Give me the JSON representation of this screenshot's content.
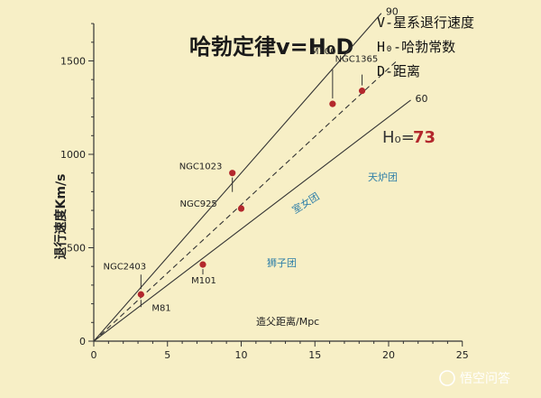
{
  "title": "哈勃定律v=H₀D",
  "legend": {
    "v_def": "V-星系退行速度",
    "h_def": "H₀-哈勃常数",
    "d_def": "D-距离"
  },
  "h0_label": "H₀=",
  "h0_value": "73",
  "watermark": "悟空问答",
  "colors": {
    "background": "#f7efc6",
    "points": "#b3282d",
    "cluster_text": "#2f7fa8"
  },
  "chart_data": {
    "type": "scatter",
    "xlabel": "造父距离/Mpc",
    "ylabel": "退行速度Km/s",
    "xlim": [
      0,
      25
    ],
    "ylim": [
      0,
      1700
    ],
    "xticks": [
      0,
      5,
      10,
      15,
      20,
      25
    ],
    "yticks": [
      0,
      500,
      1000,
      1500
    ],
    "points": [
      {
        "label": "M81",
        "x": 3.2,
        "y": 250
      },
      {
        "label": "NGC2403",
        "x": 3.2,
        "y": 250
      },
      {
        "label": "M101",
        "x": 7.4,
        "y": 410
      },
      {
        "label": "NGC925",
        "x": 10.0,
        "y": 710
      },
      {
        "label": "NGC1023",
        "x": 9.4,
        "y": 900
      },
      {
        "label": "M100",
        "x": 16.2,
        "y": 1270
      },
      {
        "label": "NGC1365",
        "x": 18.2,
        "y": 1340
      }
    ],
    "lines": [
      {
        "label": "90",
        "slope": 90,
        "x_end": 19.5,
        "style": "solid"
      },
      {
        "label": "60",
        "slope": 60,
        "x_end": 21.5,
        "style": "solid"
      },
      {
        "label": "",
        "slope": 73,
        "x_end": 20.5,
        "style": "dashed"
      }
    ],
    "clusters": [
      "室女团",
      "天炉团",
      "狮子团"
    ]
  }
}
